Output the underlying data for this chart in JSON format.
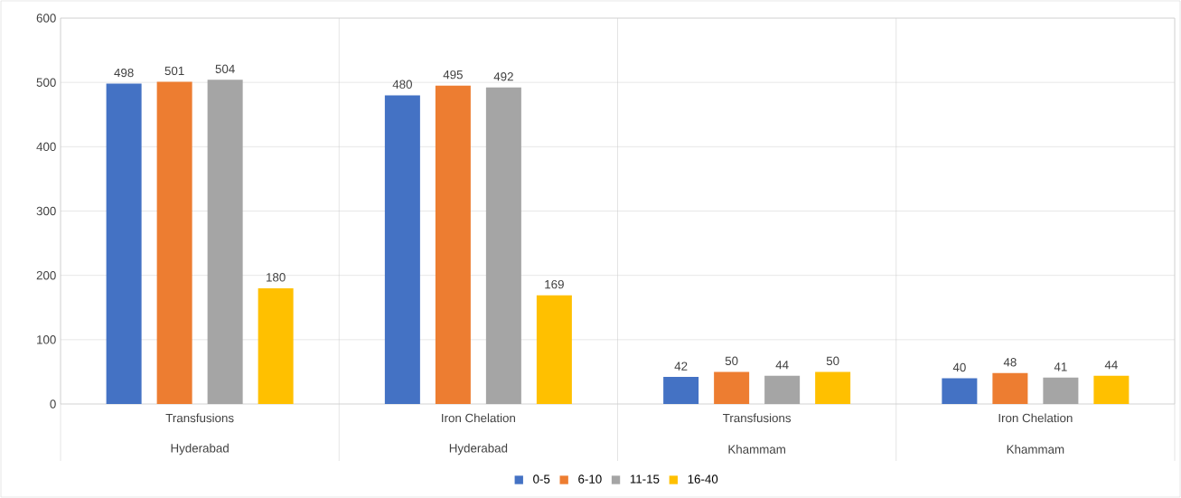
{
  "chart_data": {
    "type": "bar",
    "categories": [
      "Transfusions",
      "Iron Chelation",
      "Transfusions",
      "Iron Chelation"
    ],
    "annotations": [
      "Hyderabad",
      "Hyderabad",
      "Khammam",
      "Khammam"
    ],
    "series": [
      {
        "name": "0-5",
        "color": "#4472c4",
        "values": [
          498,
          480,
          42,
          40
        ]
      },
      {
        "name": "6-10",
        "color": "#ed7d31",
        "values": [
          501,
          495,
          50,
          48
        ]
      },
      {
        "name": "11-15",
        "color": "#a5a5a5",
        "values": [
          504,
          492,
          44,
          41
        ]
      },
      {
        "name": "16-40",
        "color": "#ffc000",
        "values": [
          180,
          169,
          50,
          44
        ]
      }
    ],
    "ylim": [
      0,
      600
    ],
    "yticks": [
      0,
      100,
      200,
      300,
      400,
      500,
      600
    ],
    "grid": "y",
    "legend": "bottom",
    "data_labels": true
  }
}
